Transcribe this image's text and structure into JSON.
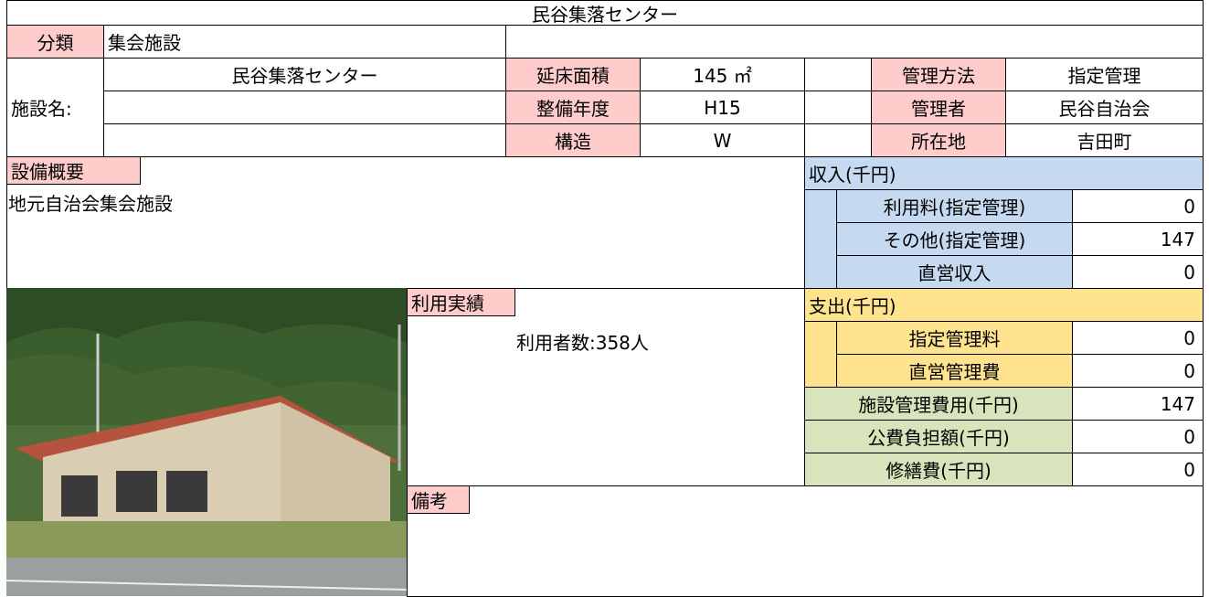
{
  "title": "民谷集落センター",
  "category": {
    "label": "分類",
    "value": "集会施設"
  },
  "facility": {
    "label": "施設名:",
    "name": "民谷集落センター"
  },
  "details_left": [
    {
      "label": "延床面積",
      "value": "145 ㎡"
    },
    {
      "label": "整備年度",
      "value": "H15"
    },
    {
      "label": "構造",
      "value": "W"
    }
  ],
  "details_right": [
    {
      "label": "管理方法",
      "value": "指定管理"
    },
    {
      "label": "管理者",
      "value": "民谷自治会"
    },
    {
      "label": "所在地",
      "value": "吉田町"
    }
  ],
  "equipment": {
    "label": "設備概要",
    "text": "地元自治会集会施設"
  },
  "usage": {
    "label": "利用実績",
    "text": "利用者数:358人"
  },
  "remarks": {
    "label": "備考"
  },
  "income": {
    "header": "収入(千円)",
    "rows": [
      {
        "label": "利用料(指定管理)",
        "value": 0
      },
      {
        "label": "その他(指定管理)",
        "value": 147
      },
      {
        "label": "直営収入",
        "value": 0
      }
    ]
  },
  "expense": {
    "header": "支出(千円)",
    "rows": [
      {
        "label": "指定管理料",
        "value": 0
      },
      {
        "label": "直営管理費",
        "value": 0
      }
    ]
  },
  "totals": [
    {
      "label": "施設管理費用(千円)",
      "value": 147
    },
    {
      "label": "公費負担額(千円)",
      "value": 0
    },
    {
      "label": "修繕費(千円)",
      "value": 0
    }
  ]
}
